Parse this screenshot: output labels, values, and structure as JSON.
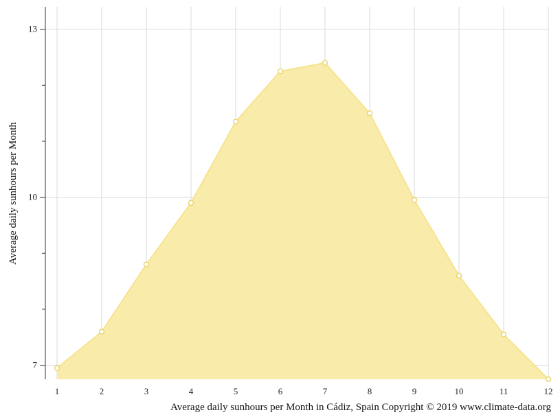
{
  "chart_data": {
    "type": "area",
    "x": [
      1,
      2,
      3,
      4,
      5,
      6,
      7,
      8,
      9,
      10,
      11,
      12
    ],
    "series": [
      {
        "values": [
          6.95,
          7.6,
          8.8,
          9.9,
          11.35,
          12.25,
          12.4,
          11.5,
          9.95,
          8.6,
          7.55,
          6.75
        ]
      }
    ],
    "title": "",
    "xlabel": "",
    "ylabel": "Average daily sunhours per Month",
    "caption": "Average daily sunhours per Month in Cádiz, Spain Copyright © 2019 www.climate-data.org",
    "ylim": [
      6.75,
      13.4
    ],
    "yticks": [
      7,
      10,
      13
    ],
    "grid": true,
    "colors": {
      "fill": "#f9eba5",
      "line": "#f7e38f",
      "marker_fill": "#ffffff",
      "marker_stroke": "#e8d060",
      "grid": "#d9d9d9",
      "axis": "#333333"
    }
  }
}
